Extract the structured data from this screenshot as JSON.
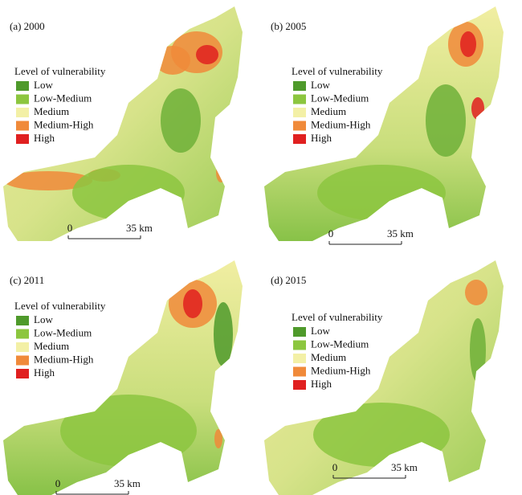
{
  "panels": [
    {
      "label": "(a) 2000",
      "legend": {
        "title": "Level of vulnerability",
        "items": [
          {
            "name": "Low",
            "color": "#4f9a2b"
          },
          {
            "name": "Low-Medium",
            "color": "#8cc63f"
          },
          {
            "name": "Medium",
            "color": "#f3f0a6"
          },
          {
            "name": "Medium-High",
            "color": "#f08a3a"
          },
          {
            "name": "High",
            "color": "#e02020"
          }
        ]
      },
      "scale_bar": {
        "start": "0",
        "end": "35 km"
      }
    },
    {
      "label": "(b) 2005",
      "legend": {
        "title": "Level of vulnerability",
        "items": [
          {
            "name": "Low",
            "color": "#4f9a2b"
          },
          {
            "name": "Low-Medium",
            "color": "#8cc63f"
          },
          {
            "name": "Medium",
            "color": "#f3f0a6"
          },
          {
            "name": "Medium-High",
            "color": "#f08a3a"
          },
          {
            "name": "High",
            "color": "#e02020"
          }
        ]
      },
      "scale_bar": {
        "start": "0",
        "end": "35 km"
      }
    },
    {
      "label": "(c) 2011",
      "legend": {
        "title": "Level of vulnerability",
        "items": [
          {
            "name": "Low",
            "color": "#4f9a2b"
          },
          {
            "name": "Low-Medium",
            "color": "#8cc63f"
          },
          {
            "name": "Medium",
            "color": "#f3f0a6"
          },
          {
            "name": "Medium-High",
            "color": "#f08a3a"
          },
          {
            "name": "High",
            "color": "#e02020"
          }
        ]
      },
      "scale_bar": {
        "start": "0",
        "end": "35 km"
      }
    },
    {
      "label": "(d) 2015",
      "legend": {
        "title": "Level of vulnerability",
        "items": [
          {
            "name": "Low",
            "color": "#4f9a2b"
          },
          {
            "name": "Low-Medium",
            "color": "#8cc63f"
          },
          {
            "name": "Medium",
            "color": "#f3f0a6"
          },
          {
            "name": "Medium-High",
            "color": "#f08a3a"
          },
          {
            "name": "High",
            "color": "#e02020"
          }
        ]
      },
      "scale_bar": {
        "start": "0",
        "end": "35 km"
      }
    }
  ]
}
